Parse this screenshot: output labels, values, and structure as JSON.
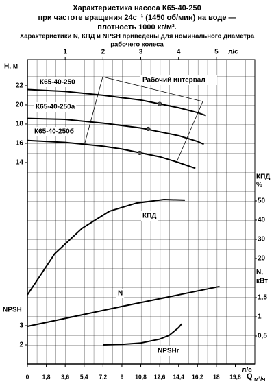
{
  "chart_data": {
    "type": "line",
    "title": [
      "Характеристика насоса К65-40-250",
      "при частоте вращения 24с⁻¹ (1450 об/мин) на воде —",
      "плотность 1000 кг/м³.",
      "Характеристики N, КПД и NPSH приведены для номинального диаметра",
      "рабочего колеса"
    ],
    "x_label": "Q",
    "x_unit": "м³/ч",
    "x2_label": "л/с",
    "xlim": [
      0,
      21.66
    ],
    "xticks": [
      0,
      {
        "value": 1.8,
        "label": "1,8"
      },
      {
        "value": 3.6,
        "label": "3,6"
      },
      {
        "value": 5.4,
        "label": "5,4"
      },
      {
        "value": 7.2,
        "label": "7,2"
      },
      9,
      {
        "value": 10.8,
        "label": "10,8"
      },
      {
        "value": 12.6,
        "label": "12,6"
      },
      {
        "value": 14.4,
        "label": "14,4"
      },
      {
        "value": 16.2,
        "label": "16,2"
      },
      18,
      {
        "value": 19.8,
        "label": "19,8"
      }
    ],
    "x2lim": [
      0,
      6.017
    ],
    "x2ticks": [
      1,
      2,
      3,
      4,
      5
    ],
    "y_label": "H, м",
    "ylim": [
      -7,
      24.71
    ],
    "yticks": [
      14,
      16,
      18,
      20,
      22
    ],
    "y2_label": [
      "КПД",
      "%"
    ],
    "y2lim": [
      -35,
      123.57
    ],
    "y2ticks": [
      20,
      30,
      40,
      50
    ],
    "y3_label": [
      "N,",
      "кВт"
    ],
    "y3lim": [
      -0.232,
      7.696
    ],
    "y3ticks": [
      {
        "value": 0.5,
        "label": "0,5"
      },
      1,
      {
        "value": 1.5,
        "label": "1,5"
      }
    ],
    "y4_label": "NPSH",
    "y4lim": [
      1,
      16.857
    ],
    "y4ticks": [
      2,
      3
    ],
    "annotation": "Рабочий интервал",
    "series": [
      {
        "name": "К65-40-250",
        "axis": "y",
        "color": "#000000",
        "x": [
          0,
          3.6,
          7.2,
          10.8,
          12.6,
          14.4,
          16.2,
          17
        ],
        "values": [
          21.6,
          21.4,
          21.0,
          20.5,
          20.1,
          19.7,
          19.2,
          18.9
        ]
      },
      {
        "name": "К65-40-250а",
        "axis": "y",
        "color": "#000000",
        "x": [
          0,
          3.6,
          7.2,
          10.8,
          12.6,
          14.4,
          16.2,
          16.8
        ],
        "values": [
          18.6,
          18.5,
          18.1,
          17.6,
          17.2,
          16.8,
          16.2,
          15.9
        ]
      },
      {
        "name": "К65-40-250б",
        "axis": "y",
        "color": "#000000",
        "x": [
          0,
          3.6,
          7.2,
          9,
          10.8,
          12.6,
          14.4,
          16
        ],
        "values": [
          16.3,
          16.1,
          15.7,
          15.4,
          15.0,
          14.6,
          14.0,
          13.4
        ]
      },
      {
        "name": "КПД",
        "axis": "y2",
        "color": "#000000",
        "x": [
          0,
          2.6,
          5.2,
          7.8,
          10.4,
          13.0,
          15.0
        ],
        "values": [
          1.1,
          22.5,
          35.7,
          44.6,
          48.9,
          50.7,
          50.4
        ]
      },
      {
        "name": "N",
        "axis": "y3",
        "color": "#000000",
        "x": [
          0,
          9,
          18.3
        ],
        "values": [
          0.75,
          1.27,
          1.79
        ]
      },
      {
        "name": "NPSHr",
        "axis": "y4",
        "color": "#000000",
        "x": [
          7.2,
          9,
          10.8,
          12.6,
          13.5,
          14.4,
          14.7
        ],
        "values": [
          2.0,
          2.03,
          2.1,
          2.3,
          2.5,
          2.9,
          3.1
        ]
      }
    ],
    "points": {
      "x": [
        12.6,
        11.5,
        10.7
      ],
      "values": [
        20.1,
        17.5,
        15.0
      ],
      "color": "#555555"
    }
  }
}
